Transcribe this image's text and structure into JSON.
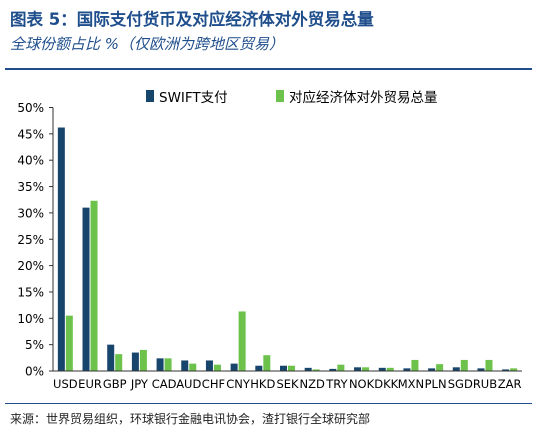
{
  "header": {
    "title": "图表 5：国际支付货币及对应经济体对外贸易总量",
    "subtitle": "全球份额占比 %（仅欧洲为跨地区贸易）"
  },
  "footer": {
    "source": "来源：世界贸易组织，环球银行金融电讯协会，渣打银行全球研究部"
  },
  "colors": {
    "swift": "#17456b",
    "trade": "#6cc24a",
    "accent": "#1f4e8c"
  },
  "chart_data": {
    "type": "bar",
    "categories": [
      "USD",
      "EUR",
      "GBP",
      "JPY",
      "CAD",
      "AUD",
      "CHF",
      "CNY",
      "HKD",
      "SEK",
      "NZD",
      "TRY",
      "NOK",
      "DKK",
      "MXN",
      "PLN",
      "SGD",
      "RUB",
      "ZAR"
    ],
    "series": [
      {
        "name": "SWIFT支付",
        "values": [
          46.2,
          31.0,
          5.0,
          3.5,
          2.4,
          2.0,
          2.0,
          1.4,
          1.0,
          1.0,
          0.6,
          0.4,
          0.7,
          0.6,
          0.5,
          0.5,
          0.7,
          0.5,
          0.3
        ]
      },
      {
        "name": "对应经济体对外贸易总量",
        "values": [
          10.5,
          32.3,
          3.2,
          4.0,
          2.4,
          1.4,
          1.2,
          11.3,
          3.0,
          1.0,
          0.3,
          1.2,
          0.7,
          0.6,
          2.1,
          1.3,
          2.1,
          2.1,
          0.5
        ]
      }
    ],
    "ylim": [
      0,
      50
    ],
    "yticks": [
      "0%",
      "5%",
      "10%",
      "15%",
      "20%",
      "25%",
      "30%",
      "35%",
      "40%",
      "45%",
      "50%"
    ],
    "legend_position": "top",
    "grid": false
  }
}
